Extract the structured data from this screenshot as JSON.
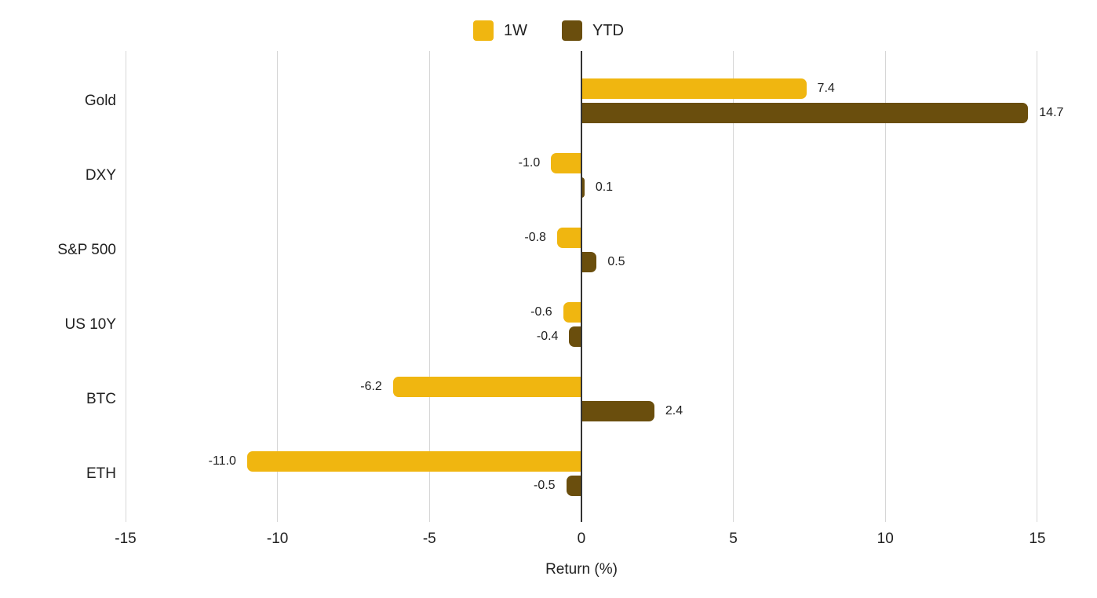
{
  "chart_data": {
    "type": "bar",
    "orientation": "horizontal",
    "title": "",
    "xlabel": "Return (%)",
    "categories": [
      "Gold",
      "DXY",
      "S&P 500",
      "US 10Y",
      "BTC",
      "ETH"
    ],
    "series": [
      {
        "name": "1W",
        "color": "#F0B610",
        "values": [
          7.4,
          -1.0,
          -0.8,
          -0.6,
          -6.2,
          -11.0
        ]
      },
      {
        "name": "YTD",
        "color": "#6A4E0D",
        "values": [
          14.7,
          0.1,
          0.5,
          -0.4,
          2.4,
          -0.5
        ]
      }
    ],
    "x_ticks": [
      -15,
      -10,
      -5,
      0,
      5,
      10,
      15
    ],
    "xlim": [
      -15,
      16.8
    ],
    "grid": true,
    "legend_position": "top",
    "value_labels": "outside bar ends, one decimal"
  },
  "styles": {
    "grid_color": "#D6D6D6",
    "zero_line_color": "#333333",
    "text_color": "#212121",
    "background": "#FFFFFF"
  }
}
